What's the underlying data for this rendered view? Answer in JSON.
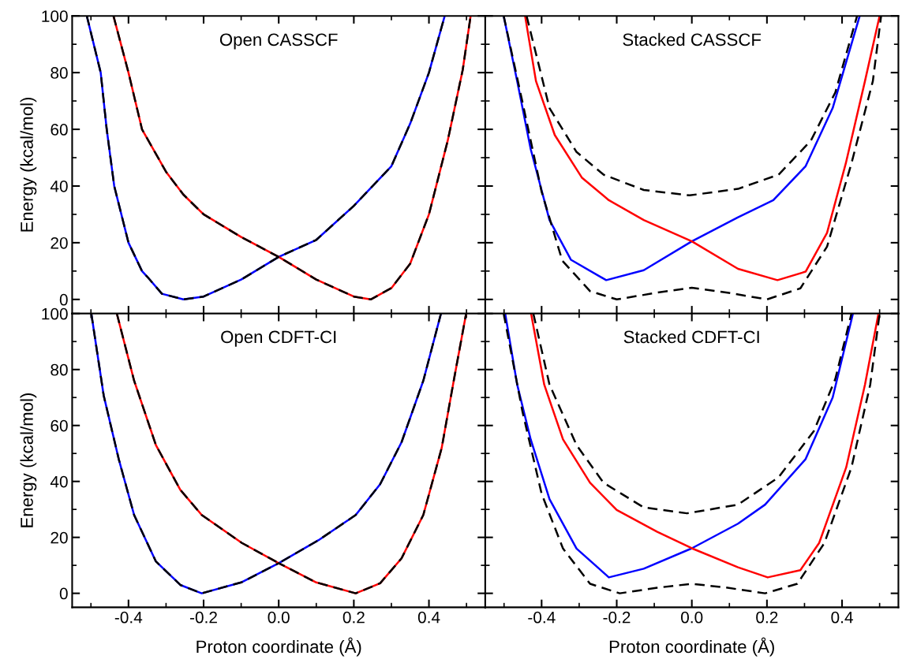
{
  "chart_data": [
    {
      "type": "line",
      "title": "Open CASSCF",
      "ylabel": "Energy (kcal/mol)",
      "xlim": [
        -0.55,
        0.55
      ],
      "xticks": [
        -0.4,
        -0.2,
        0.0,
        0.2,
        0.4
      ],
      "ylim": [
        -5,
        100
      ],
      "yticks": [
        0,
        20,
        40,
        60,
        80,
        100
      ],
      "tick_labels": "y",
      "marker": "none",
      "series": [
        {
          "color": "#0000ff",
          "line_style": "solid",
          "x": [
            -0.511,
            -0.474,
            -0.458,
            -0.438,
            -0.4,
            -0.364,
            -0.35,
            -0.311,
            -0.254,
            -0.2,
            -0.1,
            0,
            0.1,
            0.2,
            0.3,
            0.35,
            0.4,
            0.442
          ],
          "values": [
            100,
            80,
            60,
            40,
            20,
            10,
            8,
            2,
            0,
            1,
            7,
            15,
            21,
            33,
            47,
            62,
            80,
            100
          ]
        },
        {
          "color": "#ff0000",
          "line_style": "solid",
          "x": [
            -0.44,
            -0.4,
            -0.364,
            -0.3,
            -0.254,
            -0.2,
            -0.1,
            0,
            0.1,
            0.2,
            0.245,
            0.3,
            0.35,
            0.4,
            0.45,
            0.49,
            0.511
          ],
          "values": [
            100,
            80,
            60,
            45,
            37,
            30,
            22,
            15,
            7,
            1,
            0,
            4,
            12.6,
            30,
            56,
            81,
            100
          ]
        },
        {
          "color": "#000000",
          "line_style": "dashed",
          "x": [
            -0.511,
            -0.474,
            -0.458,
            -0.438,
            -0.4,
            -0.364,
            -0.35,
            -0.311,
            -0.254,
            -0.2,
            -0.1,
            0,
            0.1,
            0.2,
            0.245,
            0.3,
            0.35,
            0.4,
            0.45,
            0.49,
            0.511
          ],
          "values": [
            100,
            80,
            60,
            40,
            20,
            10,
            8,
            2,
            0,
            1,
            7,
            15,
            7,
            1,
            0,
            4,
            12.6,
            30,
            56,
            81,
            100
          ]
        },
        {
          "color": "#000000",
          "line_style": "dashed",
          "x": [
            -0.44,
            -0.4,
            -0.364,
            -0.3,
            -0.254,
            -0.2,
            -0.1,
            0,
            0.1,
            0.2,
            0.3,
            0.35,
            0.4,
            0.442
          ],
          "values": [
            100,
            80,
            60,
            45,
            37,
            30,
            22,
            15,
            21,
            33,
            47,
            62,
            80,
            100
          ]
        }
      ]
    },
    {
      "type": "line",
      "title": "Stacked CASSCF",
      "xlim": [
        -0.55,
        0.55
      ],
      "xticks": [
        -0.4,
        -0.2,
        0.0,
        0.2,
        0.4
      ],
      "ylim": [
        -5,
        100
      ],
      "yticks": [
        0,
        20,
        40,
        60,
        80,
        100
      ],
      "tick_labels": false,
      "marker": "none",
      "series": [
        {
          "color": "#0000ff",
          "line_style": "solid",
          "x": [
            -0.501,
            -0.465,
            -0.429,
            -0.379,
            -0.322,
            -0.228,
            -0.128,
            0,
            0.123,
            0.217,
            0.303,
            0.375,
            0.447
          ],
          "values": [
            100,
            77,
            53,
            28,
            14,
            6.8,
            10.3,
            20.5,
            29,
            35,
            47,
            67.5,
            100
          ]
        },
        {
          "color": "#ff0000",
          "line_style": "solid",
          "x": [
            -0.444,
            -0.415,
            -0.365,
            -0.293,
            -0.221,
            -0.128,
            0,
            0.123,
            0.228,
            0.303,
            0.36,
            0.41,
            0.461,
            0.5
          ],
          "values": [
            100,
            77,
            58,
            43,
            35,
            28,
            20.5,
            10.8,
            6.8,
            9.8,
            23.5,
            48,
            77,
            100
          ]
        },
        {
          "color": "#000000",
          "line_style": "dashed",
          "x": [
            -0.501,
            -0.45,
            -0.4,
            -0.345,
            -0.271,
            -0.2,
            -0.092,
            0,
            0.095,
            0.2,
            0.289,
            0.36,
            0.425,
            0.482,
            0.504
          ],
          "values": [
            100,
            69,
            38,
            13.7,
            2.9,
            0,
            2.4,
            4.1,
            2.4,
            0,
            3.9,
            18.6,
            48,
            77,
            100
          ]
        },
        {
          "color": "#000000",
          "line_style": "dashed",
          "x": [
            -0.44,
            -0.379,
            -0.307,
            -0.235,
            -0.128,
            -0.006,
            0.123,
            0.231,
            0.317,
            0.382,
            0.44
          ],
          "values": [
            100,
            67.5,
            52,
            44,
            38.6,
            36.7,
            39,
            44,
            56,
            73,
            100
          ]
        }
      ]
    },
    {
      "type": "line",
      "title": "Open CDFT-CI",
      "xlabel": "Proton coordinate (Å)",
      "ylabel": "Energy (kcal/mol)",
      "xlim": [
        -0.55,
        0.55
      ],
      "xticks": [
        -0.4,
        -0.2,
        {
          "value": 0,
          "label": "0.0"
        },
        0.2,
        0.4
      ],
      "ylim": [
        -5,
        100
      ],
      "yticks": [
        0,
        20,
        40,
        60,
        80,
        100
      ],
      "marker": "none",
      "series": [
        {
          "color": "#0000ff",
          "line_style": "solid",
          "x": [
            -0.499,
            -0.466,
            -0.426,
            -0.385,
            -0.327,
            -0.262,
            -0.205,
            -0.098,
            0,
            0.106,
            0.205,
            0.27,
            0.327,
            0.385,
            0.432
          ],
          "values": [
            100,
            70.7,
            48,
            28,
            11.4,
            3,
            0,
            4,
            10.8,
            19,
            28,
            39,
            54,
            76,
            100
          ]
        },
        {
          "color": "#ff0000",
          "line_style": "solid",
          "x": [
            -0.431,
            -0.385,
            -0.327,
            -0.262,
            -0.205,
            -0.098,
            0,
            0.098,
            0.205,
            0.27,
            0.327,
            0.385,
            0.434,
            0.466,
            0.499
          ],
          "values": [
            100,
            76,
            53,
            37,
            28,
            18,
            10.8,
            4,
            0,
            3.6,
            12.5,
            28,
            52,
            76,
            100
          ]
        },
        {
          "color": "#000000",
          "line_style": "dashed",
          "x": [
            -0.499,
            -0.466,
            -0.426,
            -0.385,
            -0.327,
            -0.262,
            -0.205,
            -0.098,
            0,
            0.098,
            0.205,
            0.27,
            0.327,
            0.385,
            0.434,
            0.466,
            0.499
          ],
          "values": [
            100,
            70.7,
            48,
            28,
            11.4,
            3,
            0,
            4,
            10.8,
            4,
            0,
            3.6,
            12.5,
            28,
            52,
            76,
            100
          ]
        },
        {
          "color": "#000000",
          "line_style": "dashed",
          "x": [
            -0.431,
            -0.385,
            -0.327,
            -0.262,
            -0.205,
            -0.098,
            0,
            0.106,
            0.205,
            0.27,
            0.327,
            0.385,
            0.432
          ],
          "values": [
            100,
            76,
            53,
            37,
            28,
            18,
            10.8,
            19,
            28,
            39,
            54,
            76,
            100
          ]
        }
      ]
    },
    {
      "type": "line",
      "title": "Stacked CDFT-CI",
      "xlabel": "Proton coordinate (Å)",
      "xlim": [
        -0.55,
        0.55
      ],
      "xticks": [
        -0.4,
        -0.2,
        {
          "value": 0,
          "label": "0.0"
        },
        0.2,
        0.4
      ],
      "ylim": [
        -5,
        100
      ],
      "yticks": [
        0,
        20,
        40,
        60,
        80,
        100
      ],
      "tick_labels": "x",
      "marker": "none",
      "series": [
        {
          "color": "#0000ff",
          "line_style": "solid",
          "x": [
            -0.497,
            -0.465,
            -0.429,
            -0.379,
            -0.307,
            -0.221,
            -0.128,
            0,
            0.123,
            0.195,
            0.303,
            0.375,
            0.429
          ],
          "values": [
            100,
            74.6,
            55,
            33.7,
            16,
            5.7,
            8.8,
            16.1,
            24.9,
            31.7,
            48,
            70,
            100
          ]
        },
        {
          "color": "#ff0000",
          "line_style": "solid",
          "x": [
            -0.428,
            -0.393,
            -0.343,
            -0.271,
            -0.2,
            -0.092,
            0,
            0.123,
            0.202,
            0.289,
            0.339,
            0.411,
            0.461,
            0.497
          ],
          "values": [
            100,
            74.6,
            55,
            39.5,
            29.8,
            22,
            16.1,
            9.3,
            5.7,
            8.3,
            18,
            45,
            74.6,
            100
          ]
        },
        {
          "color": "#000000",
          "line_style": "dashed",
          "x": [
            -0.501,
            -0.451,
            -0.4,
            -0.343,
            -0.271,
            -0.192,
            -0.092,
            0,
            0.095,
            0.195,
            0.281,
            0.353,
            0.425,
            0.475,
            0.5
          ],
          "values": [
            100,
            65,
            35.6,
            16,
            3.4,
            0,
            2,
            3.4,
            2,
            0,
            3.4,
            18,
            45,
            74.6,
            100
          ]
        },
        {
          "color": "#000000",
          "line_style": "dashed",
          "x": [
            -0.422,
            -0.379,
            -0.307,
            -0.235,
            -0.128,
            -0.013,
            0.123,
            0.231,
            0.325,
            0.382,
            0.425
          ],
          "values": [
            100,
            74.6,
            53,
            39.5,
            30.7,
            28.6,
            31.7,
            41.5,
            58,
            76.6,
            100
          ]
        }
      ]
    }
  ]
}
